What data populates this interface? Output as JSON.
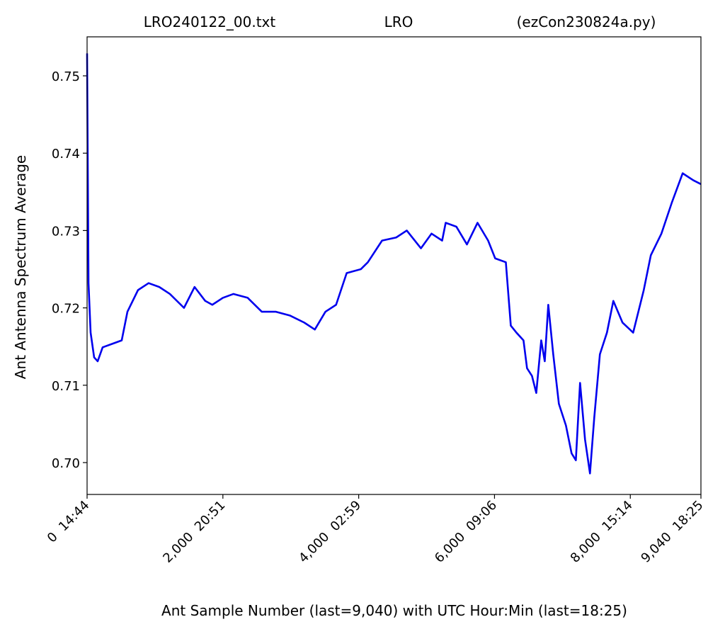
{
  "chart_data": {
    "type": "line",
    "title": [
      "LRO240122_00.txt",
      "LRO",
      "(ezCon230824a.py)"
    ],
    "x_label": "Ant Sample Number (last=9,040) with UTC Hour:Min (last=18:25)",
    "y_label": "Ant Antenna Spectrum Average",
    "x": [
      0,
      21,
      52,
      104,
      156,
      229,
      385,
      510,
      594,
      750,
      906,
      1063,
      1219,
      1427,
      1583,
      1740,
      1844,
      2000,
      2156,
      2365,
      2573,
      2781,
      2990,
      3198,
      3354,
      3510,
      3667,
      3823,
      4031,
      4135,
      4344,
      4552,
      4708,
      4917,
      5073,
      5229,
      5281,
      5438,
      5594,
      5750,
      5906,
      6010,
      6167,
      6240,
      6323,
      6427,
      6479,
      6552,
      6615,
      6688,
      6740,
      6792,
      6865,
      6948,
      7052,
      7135,
      7198,
      7260,
      7333,
      7406,
      7469,
      7552,
      7656,
      7750,
      7885,
      8042,
      8198,
      8302,
      8458,
      8615,
      8771,
      8927,
      9040
    ],
    "series": [
      {
        "name": "Ant",
        "color": "#0000ee",
        "values": [
          0.7529,
          0.7232,
          0.7168,
          0.7136,
          0.7131,
          0.7149,
          0.7154,
          0.7158,
          0.7195,
          0.7223,
          0.7232,
          0.7227,
          0.7218,
          0.72,
          0.7227,
          0.7209,
          0.7204,
          0.7213,
          0.7218,
          0.7213,
          0.7195,
          0.7195,
          0.719,
          0.7181,
          0.7172,
          0.7195,
          0.7204,
          0.7245,
          0.725,
          0.7259,
          0.7287,
          0.7291,
          0.73,
          0.7277,
          0.7296,
          0.7287,
          0.731,
          0.7305,
          0.7282,
          0.731,
          0.7287,
          0.7264,
          0.7259,
          0.7177,
          0.7168,
          0.7158,
          0.7122,
          0.7112,
          0.709,
          0.7158,
          0.7131,
          0.7204,
          0.714,
          0.7076,
          0.7048,
          0.7012,
          0.7003,
          0.7103,
          0.703,
          0.6986,
          0.7058,
          0.714,
          0.7168,
          0.7209,
          0.7181,
          0.7168,
          0.7223,
          0.7268,
          0.7296,
          0.7337,
          0.7374,
          0.7365,
          0.736
        ]
      }
    ],
    "xlim": [
      0,
      9040
    ],
    "xticks": [
      {
        "value": 0,
        "label": "0  14:44"
      },
      {
        "value": 2000,
        "label": "2,000  20:51"
      },
      {
        "value": 4000,
        "label": "4,000  02:59"
      },
      {
        "value": 6000,
        "label": "6,000  09:06"
      },
      {
        "value": 8000,
        "label": "8,000  15:14"
      },
      {
        "value": 9040,
        "label": "9,040  18:25"
      }
    ],
    "ylim": [
      0.69588,
      0.75504
    ],
    "yticks": [
      {
        "value": 0.7,
        "label": "0.70"
      },
      0.71,
      0.72,
      0.73,
      0.74,
      0.75
    ]
  }
}
